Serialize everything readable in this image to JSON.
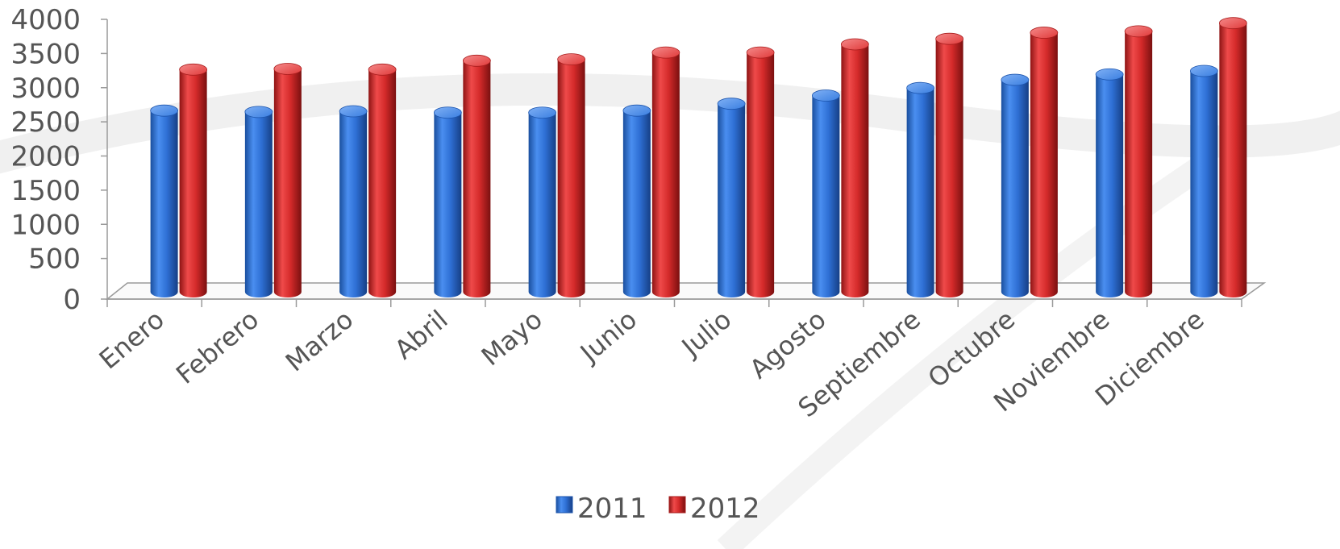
{
  "chart_data": {
    "type": "bar",
    "style": "3d-cylinder",
    "categories": [
      "Enero",
      "Febrero",
      "Marzo",
      "Abril",
      "Mayo",
      "Junio",
      "Julio",
      "Agosto",
      "Septiembre",
      "Octubre",
      "Noviembre",
      "Diciembre"
    ],
    "series": [
      {
        "name": "2011",
        "color": "#2E6FD4",
        "values": [
          2700,
          2680,
          2690,
          2670,
          2670,
          2700,
          2800,
          2920,
          3030,
          3150,
          3230,
          3280
        ]
      },
      {
        "name": "2012",
        "color": "#D42A2A",
        "values": [
          3300,
          3310,
          3300,
          3430,
          3450,
          3550,
          3550,
          3670,
          3750,
          3840,
          3860,
          3980
        ]
      }
    ],
    "ylim": [
      0,
      4000
    ],
    "yticks": [
      "0",
      "500",
      "1000",
      "1500",
      "2000",
      "2500",
      "3000",
      "3500",
      "4000"
    ],
    "grid": false,
    "legend_position": "bottom"
  }
}
